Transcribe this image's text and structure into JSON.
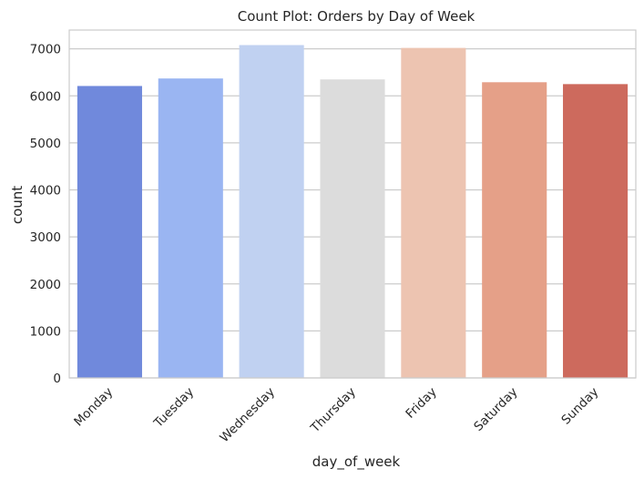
{
  "chart_data": {
    "type": "bar",
    "title": "Count Plot: Orders by Day of Week",
    "xlabel": "day_of_week",
    "ylabel": "count",
    "categories": [
      "Monday",
      "Tuesday",
      "Wednesday",
      "Thursday",
      "Friday",
      "Saturday",
      "Sunday"
    ],
    "values": [
      6210,
      6370,
      7080,
      6350,
      7020,
      6290,
      6250
    ],
    "colors": [
      "#7089dc",
      "#9ab5f2",
      "#c0d1f1",
      "#dcdcdc",
      "#edc4b1",
      "#e5a088",
      "#cd6a5d"
    ],
    "yticks": [
      "0",
      "1000",
      "2000",
      "3000",
      "4000",
      "5000",
      "6000",
      "7000"
    ],
    "ylim": [
      0,
      7400
    ],
    "grid": true,
    "legend": "none"
  }
}
